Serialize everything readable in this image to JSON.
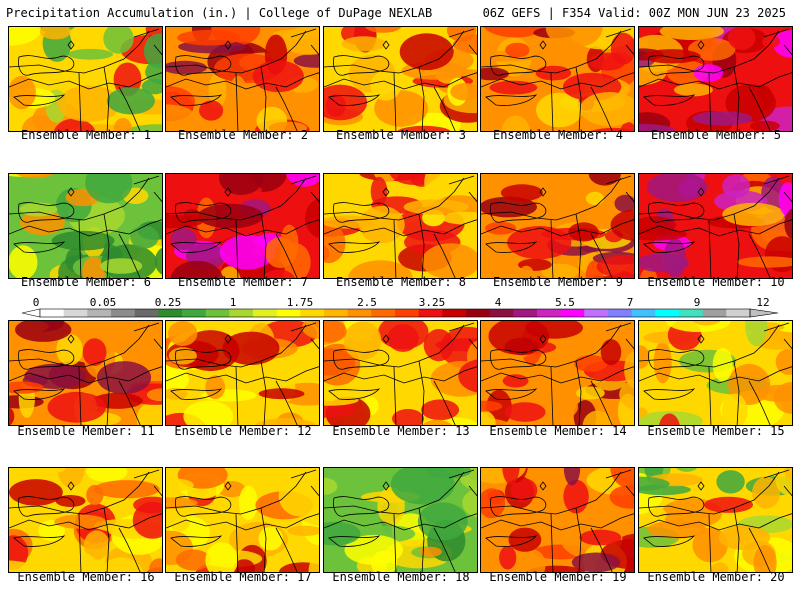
{
  "header": {
    "title_left": "Precipitation Accumulation (in.) | College of DuPage NEXLAB",
    "title_right": "06Z GEFS | F354 Valid: 00Z MON JUN 23 2025"
  },
  "panels": [
    {
      "label": "Ensemble Member: 1",
      "palette": "warm_green"
    },
    {
      "label": "Ensemble Member: 2",
      "palette": "hot"
    },
    {
      "label": "Ensemble Member: 3",
      "palette": "warm"
    },
    {
      "label": "Ensemble Member: 4",
      "palette": "hot"
    },
    {
      "label": "Ensemble Member: 5",
      "palette": "hot_magenta"
    },
    {
      "label": "Ensemble Member: 6",
      "palette": "green"
    },
    {
      "label": "Ensemble Member: 7",
      "palette": "hot_magenta"
    },
    {
      "label": "Ensemble Member: 8",
      "palette": "warm"
    },
    {
      "label": "Ensemble Member: 9",
      "palette": "hot"
    },
    {
      "label": "Ensemble Member: 10",
      "palette": "hot_magenta"
    },
    {
      "label": "Ensemble Member: 11",
      "palette": "hot"
    },
    {
      "label": "Ensemble Member: 12",
      "palette": "warm"
    },
    {
      "label": "Ensemble Member: 13",
      "palette": "warm"
    },
    {
      "label": "Ensemble Member: 14",
      "palette": "hot"
    },
    {
      "label": "Ensemble Member: 15",
      "palette": "warm_green"
    },
    {
      "label": "Ensemble Member: 16",
      "palette": "warm"
    },
    {
      "label": "Ensemble Member: 17",
      "palette": "warm"
    },
    {
      "label": "Ensemble Member: 18",
      "palette": "green"
    },
    {
      "label": "Ensemble Member: 19",
      "palette": "hot"
    },
    {
      "label": "Ensemble Member: 20",
      "palette": "warm_green"
    }
  ],
  "colorbar": {
    "labels": [
      "0",
      "0.05",
      "0.25",
      "1",
      "1.75",
      "2.5",
      "3.25",
      "4",
      "5.5",
      "7",
      "9",
      "12"
    ],
    "colors": [
      "#ffffff",
      "#d8d8d8",
      "#b4b4b4",
      "#8c8c8c",
      "#6a6a6a",
      "#2e8b2e",
      "#3fa83f",
      "#6cc23a",
      "#a8d830",
      "#e0f020",
      "#ffff00",
      "#ffd800",
      "#ffb400",
      "#ff9000",
      "#ff6a00",
      "#ff4000",
      "#ee1010",
      "#c80000",
      "#9a0010",
      "#8c1040",
      "#a01880",
      "#cc22c0",
      "#ff00ff",
      "#c070ff",
      "#8080ff",
      "#40c0ff",
      "#00ffff",
      "#40e0c0",
      "#a0a0a0",
      "#d0d0d0"
    ]
  }
}
